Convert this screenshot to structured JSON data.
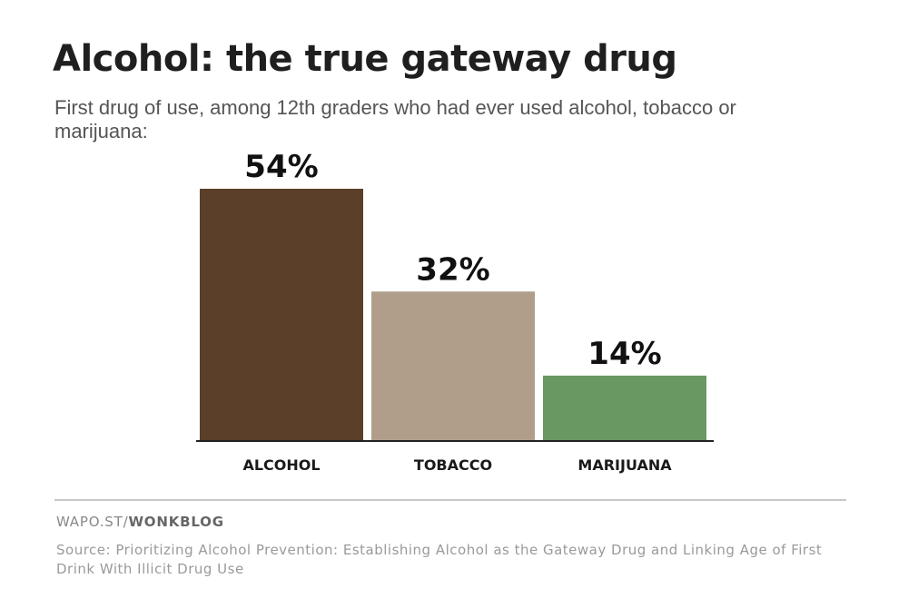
{
  "header": {
    "title": "Alcohol: the true gateway drug",
    "subtitle": "First drug of use, among 12th graders who had ever used alcohol, tobacco or marijuana:"
  },
  "footer": {
    "credit_prefix": "WAPO.ST/",
    "credit_brand": "WONKBLOG",
    "source": "Source: Prioritizing Alcohol Prevention: Establishing Alcohol as the Gateway Drug and Linking Age of First Drink With Illicit Drug Use"
  },
  "chart_data": {
    "type": "bar",
    "title": "Alcohol: the true gateway drug",
    "subtitle": "First drug of use, among 12th graders who had ever used alcohol, tobacco or marijuana:",
    "categories": [
      "ALCOHOL",
      "TOBACCO",
      "MARIJUANA"
    ],
    "values": [
      54,
      32,
      14
    ],
    "data_labels": [
      "54%",
      "32%",
      "14%"
    ],
    "unit": "%",
    "colors": [
      "#5b3f28",
      "#b09e8b",
      "#699862"
    ],
    "xlabel": "",
    "ylabel": "",
    "ylim": [
      0,
      54
    ],
    "grid": false,
    "legend": "none"
  }
}
